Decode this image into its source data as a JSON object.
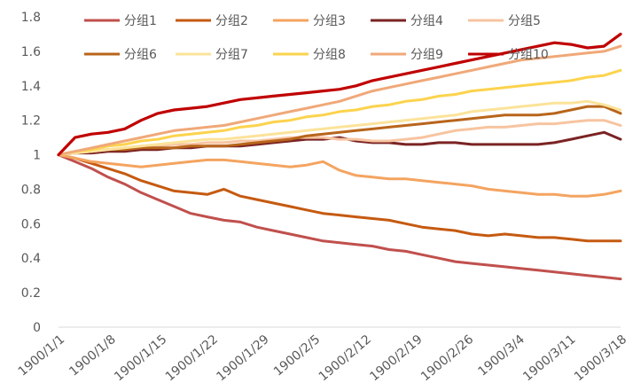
{
  "chart_data": {
    "type": "line",
    "title": "",
    "xlabel": "",
    "ylabel": "",
    "ylim": [
      0,
      1.8
    ],
    "yticks": [
      "0",
      "0.2",
      "0.4",
      "0.6",
      "0.8",
      "1",
      "1.2",
      "1.4",
      "1.6",
      "1.8"
    ],
    "xticks": [
      "1900/1/1",
      "1900/1/8",
      "1900/1/15",
      "1900/1/22",
      "1900/1/29",
      "1900/2/5",
      "1900/2/12",
      "1900/2/19",
      "1900/2/26",
      "1900/3/4",
      "1900/3/11",
      "1900/3/18"
    ],
    "grid": false,
    "legend_position": "top",
    "series": [
      {
        "name": "分组1",
        "color": "#C0504D",
        "values": [
          1.0,
          0.96,
          0.92,
          0.87,
          0.83,
          0.78,
          0.74,
          0.7,
          0.66,
          0.64,
          0.62,
          0.61,
          0.58,
          0.56,
          0.54,
          0.52,
          0.5,
          0.49,
          0.48,
          0.47,
          0.45,
          0.44,
          0.42,
          0.4,
          0.38,
          0.37,
          0.36,
          0.35,
          0.34,
          0.33,
          0.32,
          0.31,
          0.3,
          0.29,
          0.28
        ]
      },
      {
        "name": "分组2",
        "color": "#C55A11",
        "values": [
          1.0,
          0.98,
          0.95,
          0.92,
          0.89,
          0.85,
          0.82,
          0.79,
          0.78,
          0.77,
          0.8,
          0.76,
          0.74,
          0.72,
          0.7,
          0.68,
          0.66,
          0.65,
          0.64,
          0.63,
          0.62,
          0.6,
          0.58,
          0.57,
          0.56,
          0.54,
          0.53,
          0.54,
          0.53,
          0.52,
          0.52,
          0.51,
          0.5,
          0.5,
          0.5
        ]
      },
      {
        "name": "分组3",
        "color": "#F4A460",
        "values": [
          1.0,
          0.98,
          0.96,
          0.95,
          0.94,
          0.93,
          0.94,
          0.95,
          0.96,
          0.97,
          0.97,
          0.96,
          0.95,
          0.94,
          0.93,
          0.94,
          0.96,
          0.91,
          0.88,
          0.87,
          0.86,
          0.86,
          0.85,
          0.84,
          0.83,
          0.82,
          0.8,
          0.79,
          0.78,
          0.77,
          0.77,
          0.76,
          0.76,
          0.77,
          0.79
        ]
      },
      {
        "name": "分组4",
        "color": "#7B2323",
        "values": [
          1.0,
          1.01,
          1.01,
          1.02,
          1.02,
          1.03,
          1.03,
          1.04,
          1.04,
          1.05,
          1.05,
          1.05,
          1.06,
          1.07,
          1.08,
          1.09,
          1.09,
          1.1,
          1.08,
          1.07,
          1.07,
          1.06,
          1.06,
          1.07,
          1.07,
          1.06,
          1.06,
          1.06,
          1.06,
          1.06,
          1.07,
          1.09,
          1.11,
          1.13,
          1.09
        ]
      },
      {
        "name": "分组5",
        "color": "#F7C4A0",
        "values": [
          1.0,
          1.01,
          1.02,
          1.03,
          1.04,
          1.05,
          1.05,
          1.06,
          1.06,
          1.07,
          1.07,
          1.08,
          1.08,
          1.09,
          1.1,
          1.1,
          1.1,
          1.09,
          1.09,
          1.08,
          1.08,
          1.09,
          1.1,
          1.12,
          1.14,
          1.15,
          1.16,
          1.16,
          1.17,
          1.18,
          1.18,
          1.19,
          1.2,
          1.2,
          1.17
        ]
      },
      {
        "name": "分组6",
        "color": "#B8651B",
        "values": [
          1.0,
          1.01,
          1.02,
          1.03,
          1.03,
          1.04,
          1.04,
          1.04,
          1.05,
          1.05,
          1.05,
          1.06,
          1.07,
          1.08,
          1.09,
          1.11,
          1.12,
          1.13,
          1.14,
          1.15,
          1.16,
          1.17,
          1.18,
          1.19,
          1.2,
          1.21,
          1.22,
          1.23,
          1.23,
          1.23,
          1.24,
          1.26,
          1.28,
          1.28,
          1.24
        ]
      },
      {
        "name": "分组7",
        "color": "#FBE39A",
        "values": [
          1.0,
          1.01,
          1.02,
          1.03,
          1.04,
          1.05,
          1.06,
          1.07,
          1.08,
          1.09,
          1.09,
          1.1,
          1.11,
          1.12,
          1.13,
          1.14,
          1.15,
          1.16,
          1.17,
          1.18,
          1.19,
          1.2,
          1.21,
          1.22,
          1.23,
          1.25,
          1.26,
          1.27,
          1.28,
          1.29,
          1.3,
          1.3,
          1.31,
          1.29,
          1.26
        ]
      },
      {
        "name": "分组8",
        "color": "#FCD34D",
        "values": [
          1.0,
          1.02,
          1.03,
          1.05,
          1.06,
          1.08,
          1.09,
          1.11,
          1.12,
          1.13,
          1.14,
          1.16,
          1.17,
          1.19,
          1.2,
          1.22,
          1.23,
          1.25,
          1.26,
          1.28,
          1.29,
          1.31,
          1.32,
          1.34,
          1.35,
          1.37,
          1.38,
          1.39,
          1.4,
          1.41,
          1.42,
          1.43,
          1.45,
          1.46,
          1.49
        ]
      },
      {
        "name": "分组9",
        "color": "#F0A878",
        "values": [
          1.0,
          1.02,
          1.04,
          1.06,
          1.08,
          1.1,
          1.12,
          1.14,
          1.15,
          1.16,
          1.17,
          1.19,
          1.21,
          1.23,
          1.25,
          1.27,
          1.29,
          1.31,
          1.34,
          1.37,
          1.39,
          1.41,
          1.43,
          1.45,
          1.47,
          1.49,
          1.51,
          1.53,
          1.55,
          1.56,
          1.57,
          1.58,
          1.59,
          1.6,
          1.63
        ]
      },
      {
        "name": "分组10",
        "color": "#C00000",
        "values": [
          1.0,
          1.1,
          1.12,
          1.13,
          1.15,
          1.2,
          1.24,
          1.26,
          1.27,
          1.28,
          1.3,
          1.32,
          1.33,
          1.34,
          1.35,
          1.36,
          1.37,
          1.38,
          1.4,
          1.43,
          1.45,
          1.47,
          1.49,
          1.51,
          1.53,
          1.55,
          1.57,
          1.59,
          1.61,
          1.63,
          1.65,
          1.64,
          1.62,
          1.63,
          1.7
        ]
      }
    ]
  }
}
